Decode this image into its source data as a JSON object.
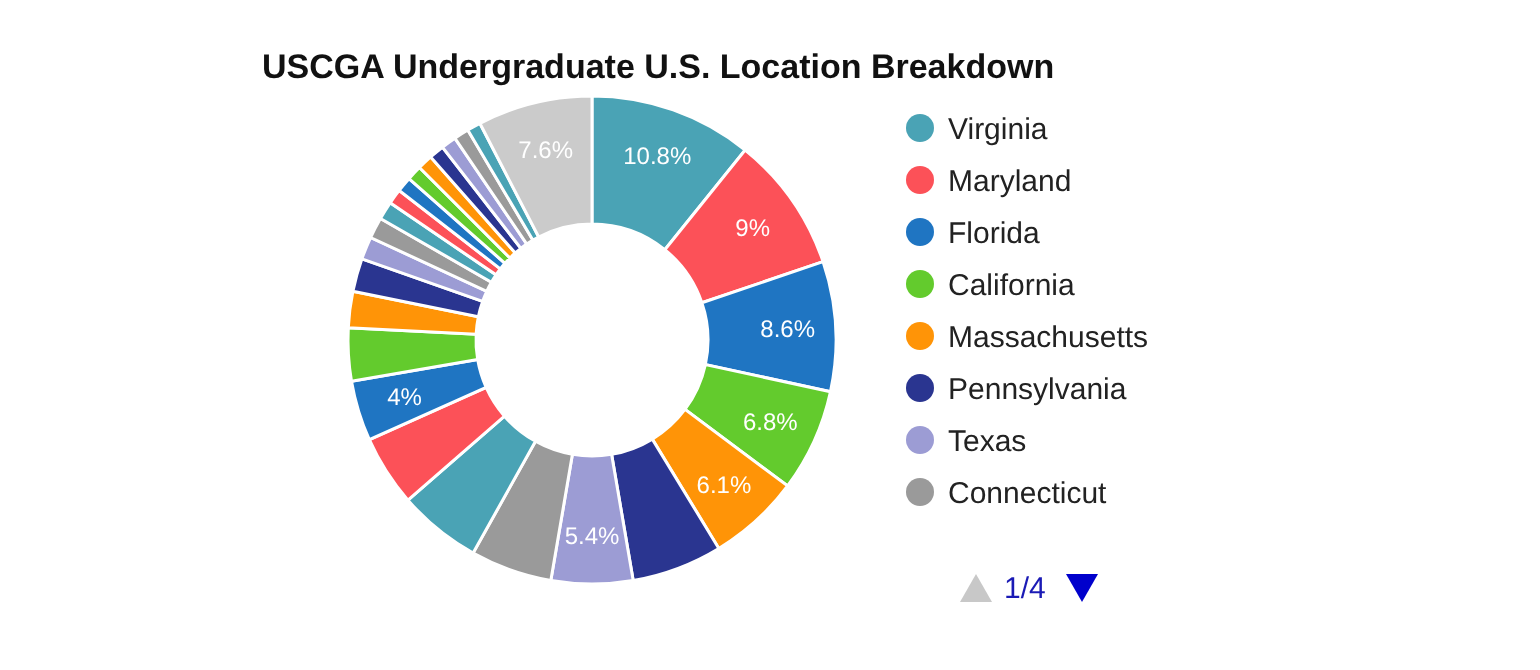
{
  "chart_data": {
    "type": "donut",
    "title": "USCGA Undergraduate U.S. Location Breakdown",
    "categories": [
      "Virginia",
      "Maryland",
      "Florida",
      "California",
      "Massachusetts",
      "Pennsylvania",
      "Texas",
      "Connecticut",
      null,
      null,
      null,
      null,
      null,
      null,
      null,
      null,
      null,
      null,
      null,
      null,
      null,
      null,
      null,
      null,
      null,
      null
    ],
    "values": [
      10.8,
      9,
      8.6,
      6.8,
      6.1,
      6.0,
      5.4,
      5.4,
      5.5,
      4.7,
      4,
      3.5,
      2.4,
      2.2,
      1.5,
      1.4,
      1.2,
      1.0,
      1.0,
      1.0,
      1.0,
      1.0,
      1.0,
      1.0,
      0.9,
      7.6
    ],
    "colors": [
      "#4aa3b5",
      "#fc5158",
      "#1f75c2",
      "#63cb2d",
      "#ff9407",
      "#2a3590",
      "#9c9cd4",
      "#9a9a9a",
      "#4aa3b5",
      "#fc5158",
      "#1f75c2",
      "#63cb2d",
      "#ff9407",
      "#2a3590",
      "#9c9cd4",
      "#9a9a9a",
      "#4aa3b5",
      "#fc5158",
      "#1f75c2",
      "#63cb2d",
      "#ff9407",
      "#2a3590",
      "#9c9cd4",
      "#9a9a9a",
      "#4aa3b5",
      "#cbcbcb"
    ],
    "value_labels": [
      "10.8%",
      "9%",
      "8.6%",
      "6.8%",
      "6.1%",
      null,
      "5.4%",
      null,
      null,
      null,
      "4%",
      null,
      null,
      null,
      null,
      null,
      null,
      null,
      null,
      null,
      null,
      null,
      null,
      null,
      null,
      "7.6%"
    ],
    "legend": "right",
    "annotations": [
      "1/4"
    ]
  }
}
